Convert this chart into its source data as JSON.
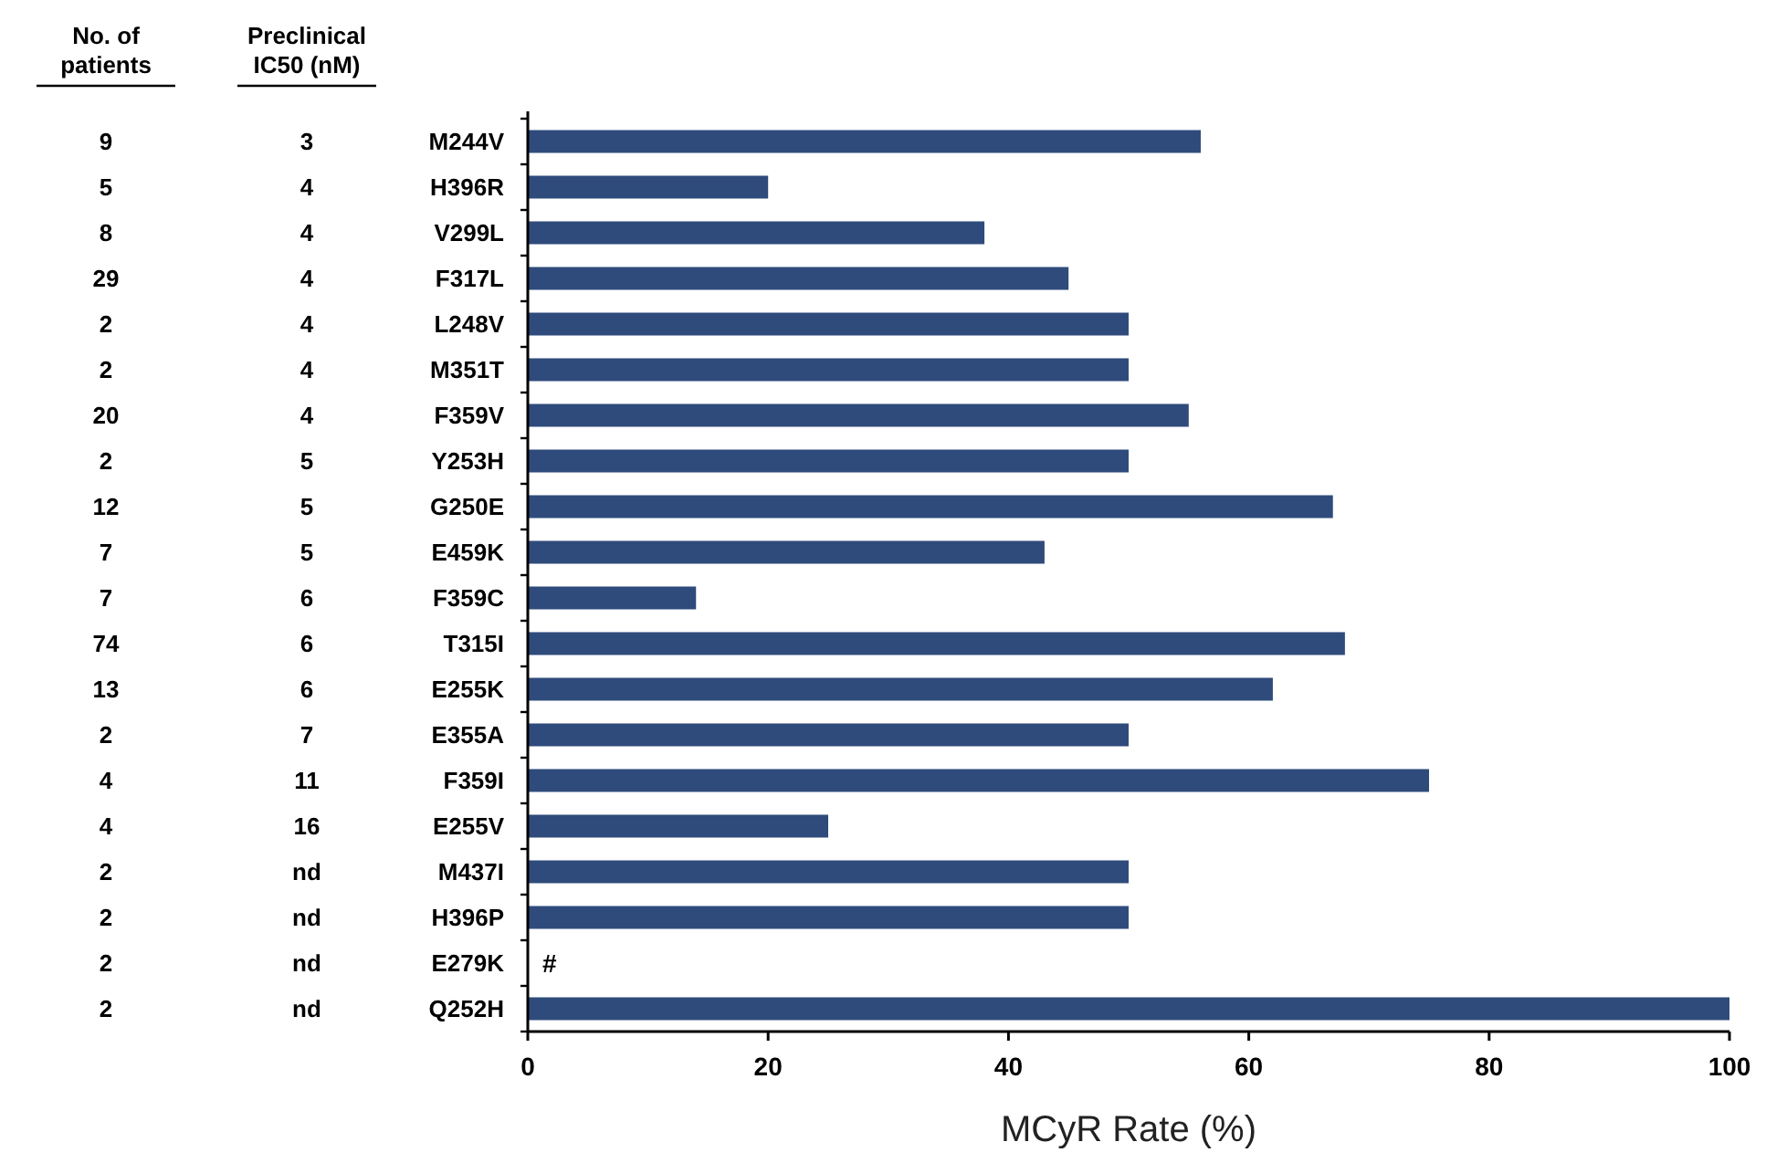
{
  "chart_data": {
    "type": "bar",
    "orientation": "horizontal",
    "xlabel": "MCyR Rate (%)",
    "categories": [
      "M244V",
      "H396R",
      "V299L",
      "F317L",
      "L248V",
      "M351T",
      "F359V",
      "Y253H",
      "G250E",
      "E459K",
      "F359C",
      "T315I",
      "E255K",
      "E355A",
      "F359I",
      "E255V",
      "M437I",
      "H396P",
      "E279K",
      "Q252H"
    ],
    "values": [
      56,
      20,
      38,
      45,
      50,
      50,
      55,
      50,
      67,
      43,
      14,
      68,
      62,
      50,
      75,
      25,
      50,
      50,
      0,
      100
    ],
    "color": "#2f4b7c",
    "xlim": [
      0,
      100
    ],
    "xticks": [
      0,
      20,
      40,
      60,
      80,
      100
    ],
    "grid": false,
    "annotations": [
      "No. of\npatients",
      "Preclinical\nIC50 (nM)",
      "9",
      "3",
      "5",
      "4",
      "8",
      "4",
      "29",
      "4",
      "2",
      "4",
      "2",
      "4",
      "20",
      "4",
      "2",
      "5",
      "12",
      "5",
      "7",
      "5",
      "7",
      "6",
      "74",
      "6",
      "13",
      "6",
      "2",
      "7",
      "4",
      "11",
      "4",
      "16",
      "2",
      "nd",
      "2",
      "nd",
      "2",
      "nd",
      "2",
      "nd",
      {
        "text": "#",
        "x": 0,
        "y": "E279K"
      }
    ]
  }
}
